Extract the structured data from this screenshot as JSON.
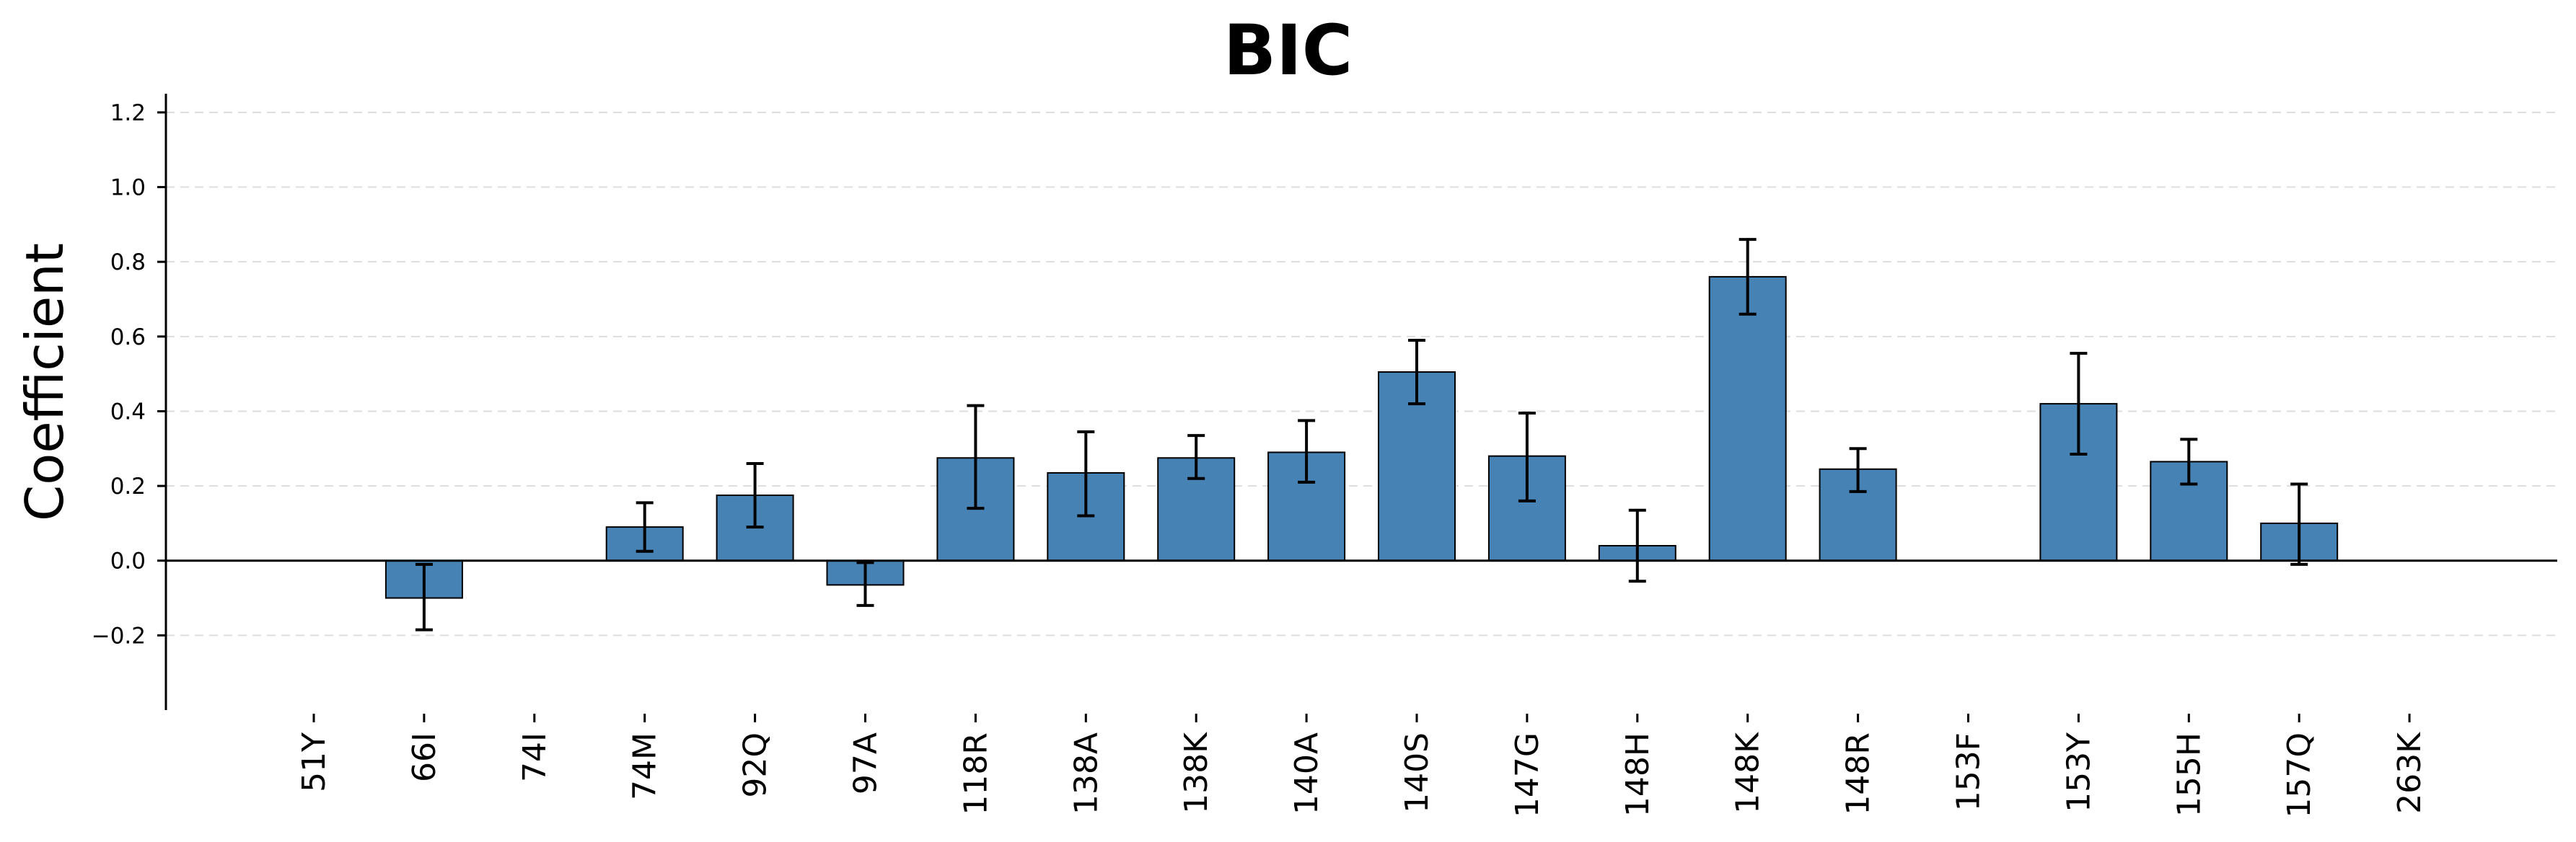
{
  "chart_data": {
    "type": "bar",
    "title": "BIC",
    "xlabel": "",
    "ylabel": "Coefficient",
    "categories": [
      "51Y",
      "66I",
      "74I",
      "74M",
      "92Q",
      "97A",
      "118R",
      "138A",
      "138K",
      "140A",
      "140S",
      "147G",
      "148H",
      "148K",
      "148R",
      "153F",
      "153Y",
      "155H",
      "157Q",
      "263K"
    ],
    "values": [
      0.0,
      -0.1,
      0.0,
      0.09,
      0.175,
      -0.065,
      0.275,
      0.235,
      0.275,
      0.29,
      0.505,
      0.28,
      0.04,
      0.76,
      0.245,
      0.0,
      0.42,
      0.265,
      0.1,
      0.0
    ],
    "error_low": [
      0.0,
      -0.185,
      0.0,
      0.025,
      0.09,
      -0.12,
      0.14,
      0.12,
      0.22,
      0.21,
      0.42,
      0.16,
      -0.055,
      0.66,
      0.185,
      0.0,
      0.285,
      0.205,
      -0.01,
      0.0
    ],
    "error_high": [
      0.0,
      -0.01,
      0.0,
      0.155,
      0.26,
      -0.005,
      0.415,
      0.345,
      0.335,
      0.375,
      0.59,
      0.395,
      0.135,
      0.86,
      0.3,
      0.0,
      0.555,
      0.325,
      0.205,
      0.0
    ],
    "ylim": [
      -0.4,
      1.25
    ],
    "yticks": [
      -0.2,
      0.0,
      0.2,
      0.4,
      0.6,
      0.8,
      1.0,
      1.2
    ],
    "ytick_labels": [
      "−0.2",
      "0.0",
      "0.2",
      "0.4",
      "0.6",
      "0.8",
      "1.0",
      "1.2"
    ],
    "grid": true,
    "bar_color": "#4682b4",
    "edge_color": "#000000",
    "grid_color": "#dddddd"
  }
}
